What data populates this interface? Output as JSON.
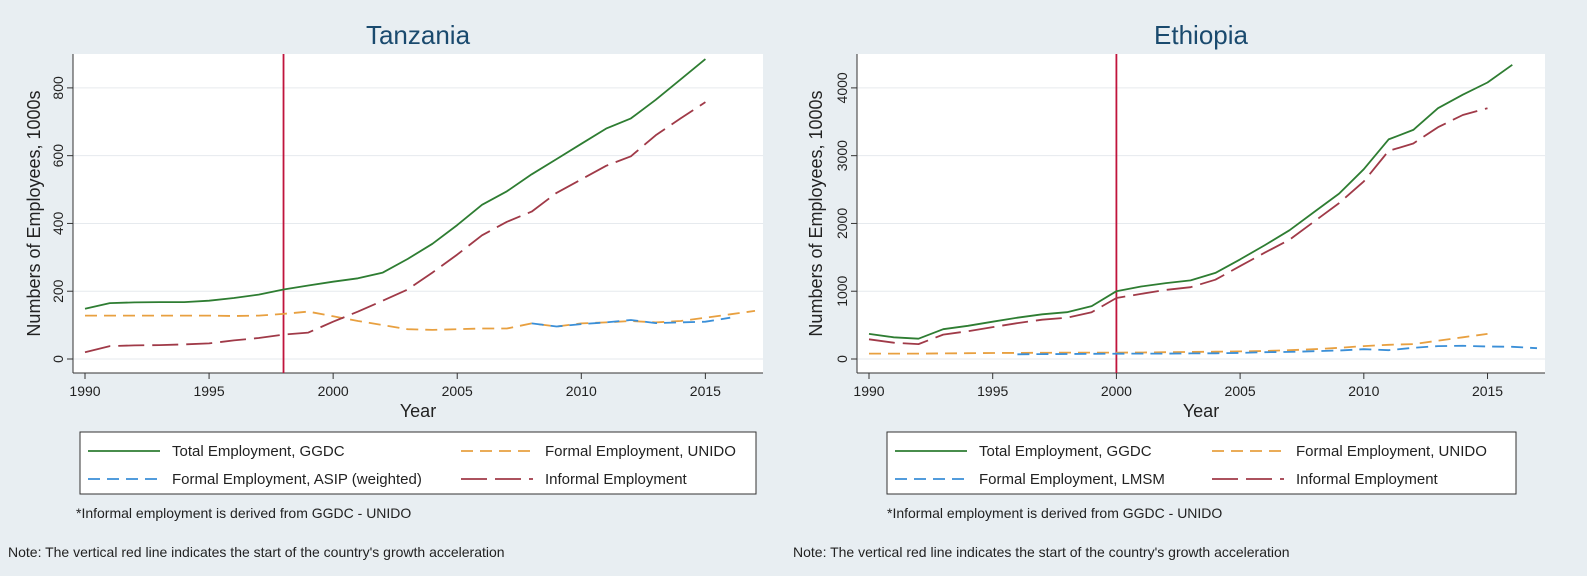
{
  "chart_data": [
    {
      "type": "line",
      "title": "Tanzania",
      "xlabel": "Year",
      "ylabel": "Numbers of Employees, 1000s",
      "xlim": [
        1990,
        2017
      ],
      "ylim": [
        0,
        900
      ],
      "xticks": [
        1990,
        1995,
        2000,
        2005,
        2010,
        2015
      ],
      "yticks": [
        0,
        200,
        400,
        600,
        800
      ],
      "grid": "horizontal",
      "vline": {
        "x": 1998,
        "color": "#c0143c"
      },
      "series": [
        {
          "name": "Total Employment, GGDC",
          "color": "#2e7d32",
          "dash": "solid",
          "x": [
            1990,
            1991,
            1992,
            1993,
            1994,
            1995,
            1996,
            1997,
            1998,
            1999,
            2000,
            2001,
            2002,
            2003,
            2004,
            2005,
            2006,
            2007,
            2008,
            2009,
            2010,
            2011,
            2012,
            2013,
            2014,
            2015
          ],
          "y": [
            148,
            165,
            167,
            168,
            168,
            172,
            180,
            190,
            205,
            217,
            228,
            238,
            255,
            295,
            340,
            395,
            455,
            495,
            545,
            590,
            635,
            680,
            710,
            765,
            825,
            885
          ]
        },
        {
          "name": "Formal Employment, UNIDO",
          "color": "#e8a040",
          "dash": "12 7",
          "x": [
            1990,
            1991,
            1992,
            1993,
            1994,
            1995,
            1996,
            1997,
            1998,
            1999,
            2000,
            2001,
            2002,
            2003,
            2004,
            2005,
            2006,
            2007,
            2008,
            2009,
            2010,
            2011,
            2012,
            2013,
            2014,
            2015,
            2016,
            2017
          ],
          "y": [
            128,
            128,
            128,
            128,
            128,
            128,
            127,
            128,
            133,
            140,
            126,
            112,
            100,
            88,
            86,
            88,
            90,
            90,
            105,
            96,
            105,
            108,
            112,
            108,
            112,
            122,
            132,
            142
          ]
        },
        {
          "name": "Formal Employment, ASIP (weighted)",
          "color": "#3a8fd8",
          "dash": "12 7",
          "x": [
            2008,
            2009,
            2010,
            2011,
            2012,
            2013,
            2014,
            2015,
            2016
          ],
          "y": [
            105,
            96,
            103,
            108,
            115,
            106,
            108,
            110,
            122
          ]
        },
        {
          "name": "Informal Employment",
          "color": "#a03a48",
          "dash": "26 8",
          "x": [
            1990,
            1991,
            1992,
            1993,
            1994,
            1995,
            1996,
            1997,
            1998,
            1999,
            2000,
            2001,
            2002,
            2003,
            2004,
            2005,
            2006,
            2007,
            2008,
            2009,
            2010,
            2011,
            2012,
            2013,
            2014,
            2015
          ],
          "y": [
            20,
            38,
            40,
            41,
            43,
            46,
            55,
            62,
            72,
            78,
            110,
            140,
            172,
            205,
            255,
            308,
            365,
            405,
            435,
            490,
            530,
            570,
            598,
            660,
            710,
            758
          ]
        }
      ],
      "legend_columns": [
        [
          "Total Employment, GGDC",
          "Formal Employment, ASIP (weighted)"
        ],
        [
          "Formal Employment, UNIDO",
          "Informal Employment"
        ]
      ],
      "footnote": "*Informal employment is derived from GGDC - UNIDO",
      "note": "Note: The vertical red line indicates the start of the country's growth acceleration"
    },
    {
      "type": "line",
      "title": "Ethiopia",
      "xlabel": "Year",
      "ylabel": "Numbers of Employees, 1000s",
      "xlim": [
        1990,
        2017
      ],
      "ylim": [
        0,
        4500
      ],
      "xticks": [
        1990,
        1995,
        2000,
        2005,
        2010,
        2015
      ],
      "yticks": [
        0,
        1000,
        2000,
        3000,
        4000
      ],
      "grid": "horizontal",
      "vline": {
        "x": 2000,
        "color": "#c0143c"
      },
      "series": [
        {
          "name": "Total Employment, GGDC",
          "color": "#2e7d32",
          "dash": "solid",
          "x": [
            1990,
            1991,
            1992,
            1993,
            1994,
            1995,
            1996,
            1997,
            1998,
            1999,
            2000,
            2001,
            2002,
            2003,
            2004,
            2005,
            2006,
            2007,
            2008,
            2009,
            2010,
            2011,
            2012,
            2013,
            2014,
            2015,
            2016
          ],
          "y": [
            370,
            320,
            300,
            440,
            490,
            550,
            610,
            660,
            690,
            780,
            1000,
            1070,
            1120,
            1160,
            1270,
            1470,
            1680,
            1900,
            2170,
            2440,
            2800,
            3240,
            3380,
            3700,
            3900,
            4080,
            4340
          ]
        },
        {
          "name": "Formal Employment, UNIDO",
          "color": "#e8a040",
          "dash": "12 7",
          "x": [
            1990,
            1991,
            1992,
            1993,
            1994,
            1995,
            1996,
            1997,
            1998,
            1999,
            2000,
            2001,
            2002,
            2003,
            2004,
            2005,
            2006,
            2007,
            2008,
            2009,
            2010,
            2011,
            2012,
            2013,
            2014,
            2015
          ],
          "y": [
            80,
            80,
            80,
            82,
            85,
            88,
            90,
            92,
            94,
            95,
            95,
            96,
            100,
            105,
            108,
            112,
            118,
            130,
            145,
            165,
            190,
            210,
            220,
            270,
            320,
            370
          ]
        },
        {
          "name": "Formal Employment, LMSM",
          "color": "#3a8fd8",
          "dash": "12 7",
          "x": [
            1996,
            1997,
            1998,
            1999,
            2000,
            2001,
            2002,
            2003,
            2004,
            2005,
            2006,
            2007,
            2008,
            2009,
            2010,
            2011,
            2012,
            2013,
            2014,
            2015,
            2016,
            2017
          ],
          "y": [
            70,
            72,
            74,
            76,
            78,
            80,
            80,
            82,
            84,
            90,
            100,
            105,
            115,
            125,
            145,
            130,
            165,
            190,
            195,
            185,
            180,
            160
          ]
        },
        {
          "name": "Informal Employment",
          "color": "#a03a48",
          "dash": "26 8",
          "x": [
            1990,
            1991,
            1992,
            1993,
            1994,
            1995,
            1996,
            1997,
            1998,
            1999,
            2000,
            2001,
            2002,
            2003,
            2004,
            2005,
            2006,
            2007,
            2008,
            2009,
            2010,
            2011,
            2012,
            2013,
            2014,
            2015
          ],
          "y": [
            290,
            240,
            220,
            360,
            410,
            470,
            530,
            580,
            610,
            690,
            900,
            960,
            1020,
            1060,
            1170,
            1370,
            1570,
            1760,
            2030,
            2300,
            2620,
            3070,
            3180,
            3420,
            3600,
            3700
          ]
        }
      ],
      "legend_columns": [
        [
          "Total Employment, GGDC",
          "Formal Employment, LMSM"
        ],
        [
          "Formal Employment, UNIDO",
          "Informal Employment"
        ]
      ],
      "footnote": "*Informal employment is derived from GGDC - UNIDO",
      "note": "Note: The vertical red line indicates the start of the country's growth acceleration"
    }
  ]
}
